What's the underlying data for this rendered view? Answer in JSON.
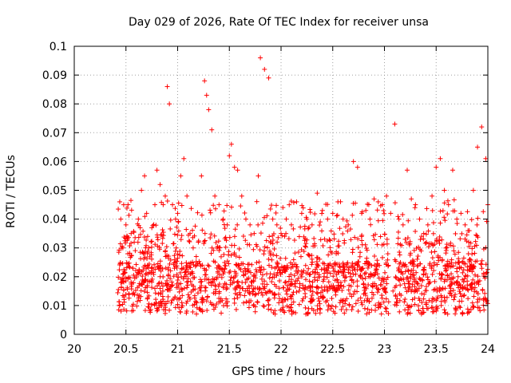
{
  "chart_data": {
    "type": "scatter",
    "title": "Day 029 of 2026, Rate Of TEC Index for receiver unsa",
    "xlabel": "GPS time / hours",
    "ylabel": "ROTI / TECUs",
    "xlim": [
      20,
      24
    ],
    "ylim": [
      0,
      0.1
    ],
    "x_ticks": [
      "20",
      "20.5",
      "21",
      "21.5",
      "22",
      "22.5",
      "23",
      "23.5",
      "24"
    ],
    "y_ticks": [
      "0",
      "0.01",
      "0.02",
      "0.03",
      "0.04",
      "0.05",
      "0.06",
      "0.07",
      "0.08",
      "0.09",
      "0.1"
    ],
    "grid": true,
    "marker": "plus",
    "color": "#ff0000",
    "point_count_hint": "approx. 2000 points from 20.42 to 24.0 h",
    "series": [
      {
        "x": [
          20.44,
          20.45,
          20.47,
          20.5,
          20.52,
          20.55,
          20.58,
          20.62,
          20.65,
          20.68,
          20.7,
          20.72,
          20.75,
          20.78,
          20.8,
          20.83,
          20.86,
          20.88,
          20.9,
          20.92,
          20.95,
          20.98,
          21.0,
          21.03,
          21.06,
          21.09,
          21.12,
          21.15,
          21.18,
          21.2,
          21.23,
          21.26,
          21.28,
          21.3,
          21.33,
          21.36,
          21.4,
          21.44,
          21.48,
          21.5,
          21.52,
          21.55,
          21.58,
          21.62,
          21.66,
          21.7,
          21.74,
          21.78,
          21.8,
          21.84,
          21.88,
          21.92,
          21.96,
          22.0,
          22.05,
          22.1,
          22.15,
          22.2,
          22.25,
          22.3,
          22.35,
          22.4,
          22.45,
          22.5,
          22.55,
          22.6,
          22.65,
          22.7,
          22.74,
          22.78,
          22.82,
          22.86,
          22.9,
          22.94,
          22.98,
          23.02,
          23.06,
          23.1,
          23.14,
          23.18,
          23.22,
          23.26,
          23.3,
          23.34,
          23.38,
          23.42,
          23.46,
          23.5,
          23.54,
          23.58,
          23.62,
          23.66,
          23.7,
          23.74,
          23.78,
          23.82,
          23.86,
          23.9,
          23.94,
          23.98,
          24.0
        ],
        "y": [
          0.046,
          0.04,
          0.03,
          0.038,
          0.045,
          0.035,
          0.032,
          0.04,
          0.05,
          0.055,
          0.042,
          0.03,
          0.037,
          0.045,
          0.057,
          0.052,
          0.045,
          0.048,
          0.086,
          0.08,
          0.045,
          0.04,
          0.042,
          0.055,
          0.061,
          0.048,
          0.035,
          0.03,
          0.027,
          0.032,
          0.055,
          0.088,
          0.083,
          0.078,
          0.071,
          0.048,
          0.045,
          0.04,
          0.038,
          0.062,
          0.066,
          0.058,
          0.057,
          0.048,
          0.04,
          0.038,
          0.035,
          0.055,
          0.096,
          0.092,
          0.089,
          0.04,
          0.038,
          0.035,
          0.04,
          0.038,
          0.046,
          0.042,
          0.04,
          0.038,
          0.049,
          0.043,
          0.04,
          0.042,
          0.046,
          0.04,
          0.038,
          0.06,
          0.058,
          0.042,
          0.043,
          0.04,
          0.047,
          0.046,
          0.045,
          0.048,
          0.042,
          0.073,
          0.04,
          0.038,
          0.057,
          0.047,
          0.045,
          0.04,
          0.035,
          0.038,
          0.048,
          0.058,
          0.061,
          0.05,
          0.045,
          0.057,
          0.04,
          0.042,
          0.038,
          0.036,
          0.05,
          0.065,
          0.072,
          0.061,
          0.045
        ]
      }
    ]
  }
}
